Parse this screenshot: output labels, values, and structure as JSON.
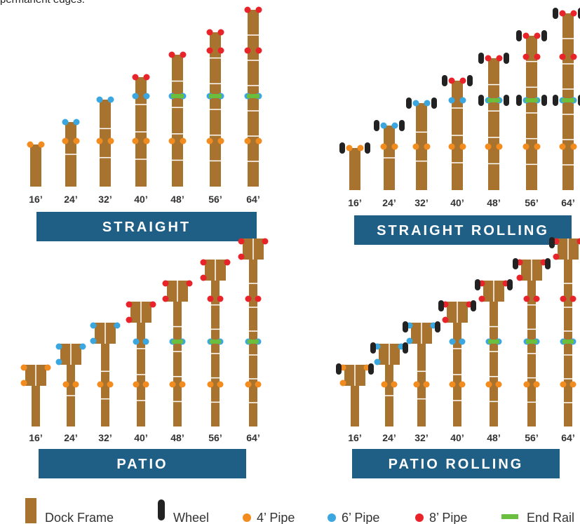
{
  "top_caption": "permanent edges.",
  "colors": {
    "frame": "#a8732f",
    "frame_divider": "#ffffff",
    "wheel": "#222222",
    "pipe_4ft": "#f28c1e",
    "pipe_6ft": "#3aa7e0",
    "pipe_8ft": "#e8242a",
    "end_rail": "#6abf3e",
    "banner": "#1f5f86",
    "banner_text": "#ffffff",
    "label_text": "#333333"
  },
  "sections": [
    {
      "id": "straight",
      "banner": "STRAIGHT",
      "style": "straight",
      "rolling": false,
      "sizes": [
        "16’",
        "24’",
        "32’",
        "40’",
        "48’",
        "56’",
        "64’"
      ]
    },
    {
      "id": "straight-rolling",
      "banner": "STRAIGHT ROLLING",
      "style": "straight",
      "rolling": true,
      "sizes": [
        "16’",
        "24’",
        "32’",
        "40’",
        "48’",
        "56’",
        "64’"
      ]
    },
    {
      "id": "patio",
      "banner": "PATIO",
      "style": "patio",
      "rolling": false,
      "sizes": [
        "16’",
        "24’",
        "32’",
        "40’",
        "48’",
        "56’",
        "64’"
      ]
    },
    {
      "id": "patio-rolling",
      "banner": "PATIO ROLLING",
      "style": "patio",
      "rolling": true,
      "sizes": [
        "16’",
        "24’",
        "32’",
        "40’",
        "48’",
        "56’",
        "64’"
      ]
    }
  ],
  "legend": [
    {
      "key": "frame",
      "icon": "dock-frame-icon",
      "label": "Dock Frame"
    },
    {
      "key": "wheel",
      "icon": "wheel-icon",
      "label": "Wheel"
    },
    {
      "key": "pipe_4ft",
      "icon": "orange-dot-icon",
      "label": "4’ Pipe"
    },
    {
      "key": "pipe_6ft",
      "icon": "blue-dot-icon",
      "label": "6’ Pipe"
    },
    {
      "key": "pipe_8ft",
      "icon": "red-dot-icon",
      "label": "8’ Pipe"
    },
    {
      "key": "end_rail",
      "icon": "green-bar-icon",
      "label": "End Rail"
    }
  ]
}
